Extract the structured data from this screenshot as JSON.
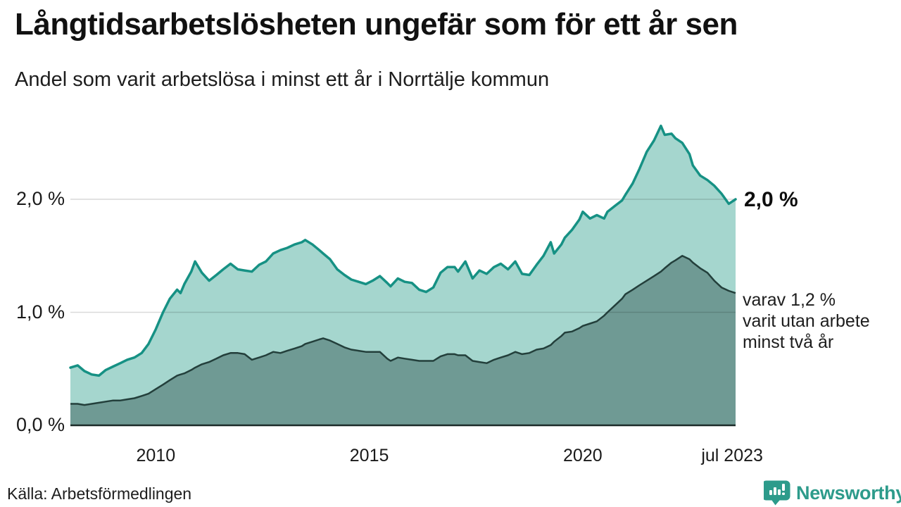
{
  "title": "Långtidsarbetslösheten ungefär som för ett år sen",
  "subtitle": "Andel som varit arbetslösa i minst ett år i Norrtälje kommun",
  "source": "Källa: Arbetsförmedlingen",
  "branding": {
    "name": "Newsworthy",
    "icon": "newsworthy-barchart-pin-icon",
    "accent_color": "#2d9b8b"
  },
  "annotations": {
    "end_value_label": "2,0 %",
    "secondary_lines": [
      "varav 1,2 %",
      "varit utan arbete",
      "minst två år"
    ]
  },
  "chart_data": {
    "type": "area",
    "title": "Långtidsarbetslösheten ungefär som för ett år sen",
    "subtitle": "Andel som varit arbetslösa i minst ett år i Norrtälje kommun",
    "xlabel": "",
    "ylabel": "",
    "grid": "horizontal-gridlines-at-1-and-2-percent",
    "legend_position": "annotated-at-line-ends",
    "xlim": [
      2008.0,
      2023.58
    ],
    "ylim": [
      0,
      2.8
    ],
    "y_ticks": [
      {
        "label": "0,0 %",
        "value": 0.0
      },
      {
        "label": "1,0 %",
        "value": 1.0
      },
      {
        "label": "2,0 %",
        "value": 2.0
      }
    ],
    "x_ticks": [
      {
        "label": "2010",
        "year": 2010.0
      },
      {
        "label": "2015",
        "year": 2015.0
      },
      {
        "label": "2020",
        "year": 2020.0
      },
      {
        "label": "jul 2023",
        "year": 2023.5
      }
    ],
    "x": [
      2008.0,
      2008.17,
      2008.33,
      2008.5,
      2008.67,
      2008.83,
      2009.0,
      2009.17,
      2009.33,
      2009.5,
      2009.67,
      2009.83,
      2010.0,
      2010.17,
      2010.33,
      2010.5,
      2010.58,
      2010.67,
      2010.83,
      2010.92,
      2011.08,
      2011.25,
      2011.42,
      2011.58,
      2011.75,
      2011.92,
      2012.08,
      2012.25,
      2012.42,
      2012.58,
      2012.75,
      2012.92,
      2013.08,
      2013.25,
      2013.42,
      2013.5,
      2013.67,
      2013.83,
      2013.92,
      2014.08,
      2014.25,
      2014.42,
      2014.58,
      2014.75,
      2014.92,
      2015.08,
      2015.25,
      2015.42,
      2015.5,
      2015.67,
      2015.83,
      2016.0,
      2016.17,
      2016.33,
      2016.5,
      2016.67,
      2016.83,
      2017.0,
      2017.08,
      2017.25,
      2017.42,
      2017.58,
      2017.75,
      2017.92,
      2018.08,
      2018.25,
      2018.42,
      2018.58,
      2018.75,
      2018.92,
      2019.08,
      2019.25,
      2019.33,
      2019.5,
      2019.58,
      2019.75,
      2019.92,
      2020.0,
      2020.17,
      2020.33,
      2020.5,
      2020.58,
      2020.75,
      2020.92,
      2021.0,
      2021.17,
      2021.33,
      2021.5,
      2021.67,
      2021.83,
      2021.92,
      2022.08,
      2022.17,
      2022.33,
      2022.5,
      2022.58,
      2022.75,
      2022.92,
      2023.08,
      2023.25,
      2023.42,
      2023.58
    ],
    "series": [
      {
        "name": "Andel som varit arbetslösa minst ett år",
        "line_color": "#169184",
        "fill_color": "#a5d6ce",
        "end_label": "2,0 %",
        "values": [
          0.51,
          0.53,
          0.48,
          0.45,
          0.44,
          0.49,
          0.52,
          0.55,
          0.58,
          0.6,
          0.64,
          0.72,
          0.85,
          1.0,
          1.12,
          1.2,
          1.17,
          1.25,
          1.36,
          1.45,
          1.35,
          1.28,
          1.33,
          1.38,
          1.43,
          1.38,
          1.37,
          1.36,
          1.42,
          1.45,
          1.52,
          1.55,
          1.57,
          1.6,
          1.62,
          1.64,
          1.6,
          1.55,
          1.52,
          1.47,
          1.38,
          1.33,
          1.29,
          1.27,
          1.25,
          1.28,
          1.32,
          1.26,
          1.23,
          1.3,
          1.27,
          1.26,
          1.2,
          1.18,
          1.22,
          1.35,
          1.4,
          1.4,
          1.36,
          1.45,
          1.3,
          1.37,
          1.34,
          1.4,
          1.43,
          1.38,
          1.45,
          1.34,
          1.33,
          1.42,
          1.5,
          1.62,
          1.52,
          1.6,
          1.66,
          1.73,
          1.82,
          1.89,
          1.83,
          1.86,
          1.83,
          1.89,
          1.94,
          1.99,
          2.04,
          2.14,
          2.27,
          2.42,
          2.52,
          2.65,
          2.57,
          2.58,
          2.54,
          2.5,
          2.4,
          2.3,
          2.21,
          2.17,
          2.12,
          2.05,
          1.96,
          2.0
        ]
      },
      {
        "name": "varav varit utan arbete minst två år",
        "line_color": "#233f3b",
        "fill_color": "#6f9a94",
        "end_label": "varav 1,2 % varit utan arbete minst två år",
        "values": [
          0.19,
          0.19,
          0.18,
          0.19,
          0.2,
          0.21,
          0.22,
          0.22,
          0.23,
          0.24,
          0.26,
          0.28,
          0.32,
          0.36,
          0.4,
          0.44,
          0.45,
          0.46,
          0.49,
          0.51,
          0.54,
          0.56,
          0.59,
          0.62,
          0.64,
          0.64,
          0.63,
          0.58,
          0.6,
          0.62,
          0.65,
          0.64,
          0.66,
          0.68,
          0.7,
          0.72,
          0.74,
          0.76,
          0.77,
          0.75,
          0.72,
          0.69,
          0.67,
          0.66,
          0.65,
          0.65,
          0.65,
          0.59,
          0.57,
          0.6,
          0.59,
          0.58,
          0.57,
          0.57,
          0.57,
          0.61,
          0.63,
          0.63,
          0.62,
          0.62,
          0.57,
          0.56,
          0.55,
          0.58,
          0.6,
          0.62,
          0.65,
          0.63,
          0.64,
          0.67,
          0.68,
          0.71,
          0.74,
          0.79,
          0.82,
          0.83,
          0.86,
          0.88,
          0.9,
          0.92,
          0.97,
          1.0,
          1.06,
          1.12,
          1.16,
          1.2,
          1.24,
          1.28,
          1.32,
          1.36,
          1.39,
          1.44,
          1.46,
          1.5,
          1.47,
          1.44,
          1.39,
          1.35,
          1.28,
          1.22,
          1.19,
          1.17
        ]
      }
    ],
    "colors": {
      "gridline": "#d9d9d9",
      "baseline": "#1c2b29",
      "background": "#ffffff"
    }
  }
}
